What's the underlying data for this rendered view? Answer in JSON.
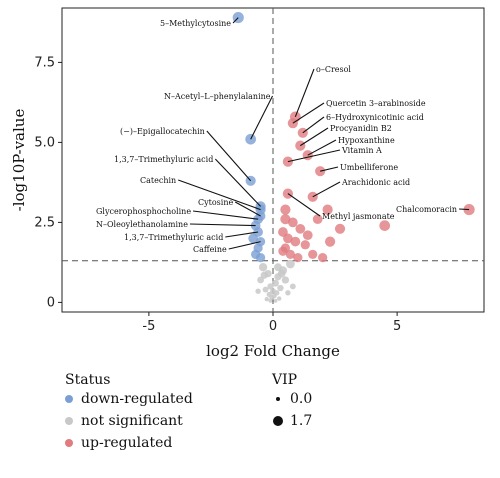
{
  "chart_data": {
    "type": "scatter",
    "title": "",
    "xlabel": "log2 Fold Change",
    "ylabel": "-log10P-value",
    "xlim": [
      -8.5,
      8.5
    ],
    "ylim": [
      -0.3,
      9.2
    ],
    "xticks": [
      -5,
      0,
      5
    ],
    "yticks": [
      0,
      2.5,
      5.0,
      7.5
    ],
    "xtick_labels": [
      "-5",
      "0",
      "5"
    ],
    "ytick_labels": [
      "0",
      "2.5",
      "5.0",
      "7.5"
    ],
    "thresholds": {
      "x": 0,
      "y": 1.3
    },
    "grid": false,
    "colors": {
      "down": "#7b9fd4",
      "ns": "#c8c8c8",
      "up": "#e07b7f"
    },
    "labeled_points": [
      {
        "label": "5–Methylcytosine",
        "x": -1.4,
        "y": 8.9,
        "status": "down",
        "vip": 1.7
      },
      {
        "label": "N–Acetyl–L–phenylalanine",
        "x": -0.9,
        "y": 5.1,
        "status": "down",
        "vip": 1.6
      },
      {
        "label": "(−)–Epigallocatechin",
        "x": -0.9,
        "y": 3.8,
        "status": "down",
        "vip": 1.5
      },
      {
        "label": "1,3,7–Trimethyluric acid",
        "x": -0.5,
        "y": 3.0,
        "status": "down",
        "vip": 1.5
      },
      {
        "label": "Catechin",
        "x": -0.5,
        "y": 2.9,
        "status": "down",
        "vip": 1.5
      },
      {
        "label": "Cytosine",
        "x": -0.5,
        "y": 2.7,
        "status": "down",
        "vip": 1.4
      },
      {
        "label": "Glycerophosphocholine",
        "x": -0.6,
        "y": 2.6,
        "status": "down",
        "vip": 1.4
      },
      {
        "label": "N–Oleoylethanolamine",
        "x": -0.7,
        "y": 2.4,
        "status": "down",
        "vip": 1.4
      },
      {
        "label": "1,3,7–Trimethyluric acid",
        "x": -0.6,
        "y": 2.2,
        "status": "down",
        "vip": 1.4
      },
      {
        "label": "Caffeine",
        "x": -0.5,
        "y": 1.9,
        "status": "down",
        "vip": 1.3
      },
      {
        "label": "o–Cresol",
        "x": 0.9,
        "y": 5.8,
        "status": "up",
        "vip": 1.6
      },
      {
        "label": "Quercetin 3–arabinoside",
        "x": 0.8,
        "y": 5.6,
        "status": "up",
        "vip": 1.5
      },
      {
        "label": "6–Hydroxynicotinic acid",
        "x": 1.2,
        "y": 5.3,
        "status": "up",
        "vip": 1.5
      },
      {
        "label": "Procyanidin B2",
        "x": 1.1,
        "y": 4.9,
        "status": "up",
        "vip": 1.5
      },
      {
        "label": "Hypoxanthine",
        "x": 1.4,
        "y": 4.6,
        "status": "up",
        "vip": 1.5
      },
      {
        "label": "Vitamin A",
        "x": 0.6,
        "y": 4.4,
        "status": "up",
        "vip": 1.5
      },
      {
        "label": "Umbelliferone",
        "x": 1.9,
        "y": 4.1,
        "status": "up",
        "vip": 1.5
      },
      {
        "label": "Arachidonic acid",
        "x": 1.6,
        "y": 3.3,
        "status": "up",
        "vip": 1.5
      },
      {
        "label": "Methyl jasmonate",
        "x": 0.6,
        "y": 3.4,
        "status": "up",
        "vip": 1.5
      },
      {
        "label": "Chalcomoracin",
        "x": 7.9,
        "y": 2.9,
        "status": "up",
        "vip": 1.7
      }
    ],
    "other_points": [
      {
        "x": 2.2,
        "y": 2.9,
        "status": "up",
        "vip": 1.5
      },
      {
        "x": 2.7,
        "y": 2.3,
        "status": "up",
        "vip": 1.5
      },
      {
        "x": 4.5,
        "y": 2.4,
        "status": "up",
        "vip": 1.6
      },
      {
        "x": 1.8,
        "y": 2.6,
        "status": "up",
        "vip": 1.4
      },
      {
        "x": 2.3,
        "y": 1.9,
        "status": "up",
        "vip": 1.5
      },
      {
        "x": 0.5,
        "y": 2.9,
        "status": "up",
        "vip": 1.5
      },
      {
        "x": 0.5,
        "y": 2.6,
        "status": "up",
        "vip": 1.5
      },
      {
        "x": 0.8,
        "y": 2.5,
        "status": "up",
        "vip": 1.4
      },
      {
        "x": 1.1,
        "y": 2.3,
        "status": "up",
        "vip": 1.4
      },
      {
        "x": 0.4,
        "y": 2.2,
        "status": "up",
        "vip": 1.4
      },
      {
        "x": 0.6,
        "y": 2.0,
        "status": "up",
        "vip": 1.4
      },
      {
        "x": 0.9,
        "y": 1.9,
        "status": "up",
        "vip": 1.4
      },
      {
        "x": 1.3,
        "y": 1.8,
        "status": "up",
        "vip": 1.3
      },
      {
        "x": 0.5,
        "y": 1.7,
        "status": "up",
        "vip": 1.3
      },
      {
        "x": 1.6,
        "y": 1.5,
        "status": "up",
        "vip": 1.3
      },
      {
        "x": 0.7,
        "y": 1.5,
        "status": "up",
        "vip": 1.3
      },
      {
        "x": 2.0,
        "y": 1.4,
        "status": "up",
        "vip": 1.3
      },
      {
        "x": 1.0,
        "y": 1.4,
        "status": "up",
        "vip": 1.3
      },
      {
        "x": 0.4,
        "y": 1.6,
        "status": "up",
        "vip": 1.3
      },
      {
        "x": 1.4,
        "y": 2.1,
        "status": "up",
        "vip": 1.4
      },
      {
        "x": -0.6,
        "y": 1.7,
        "status": "down",
        "vip": 1.3
      },
      {
        "x": -0.7,
        "y": 1.5,
        "status": "down",
        "vip": 1.3
      },
      {
        "x": -0.5,
        "y": 1.4,
        "status": "down",
        "vip": 1.3
      },
      {
        "x": -0.8,
        "y": 2.0,
        "status": "down",
        "vip": 1.4
      },
      {
        "x": 0.7,
        "y": 1.2,
        "status": "ns",
        "vip": 1.2
      },
      {
        "x": 0.4,
        "y": 1.0,
        "status": "ns",
        "vip": 1.1
      },
      {
        "x": -0.4,
        "y": 1.1,
        "status": "ns",
        "vip": 1.1
      },
      {
        "x": -0.2,
        "y": 0.9,
        "status": "ns",
        "vip": 0.9
      },
      {
        "x": 0.2,
        "y": 0.8,
        "status": "ns",
        "vip": 0.9
      },
      {
        "x": 0.5,
        "y": 0.7,
        "status": "ns",
        "vip": 0.9
      },
      {
        "x": -0.5,
        "y": 0.7,
        "status": "ns",
        "vip": 0.8
      },
      {
        "x": 0.1,
        "y": 0.6,
        "status": "ns",
        "vip": 0.8
      },
      {
        "x": -0.1,
        "y": 0.5,
        "status": "ns",
        "vip": 0.7
      },
      {
        "x": 0.3,
        "y": 0.45,
        "status": "ns",
        "vip": 0.7
      },
      {
        "x": -0.3,
        "y": 0.4,
        "status": "ns",
        "vip": 0.6
      },
      {
        "x": 0.0,
        "y": 0.35,
        "status": "ns",
        "vip": 0.6
      },
      {
        "x": 0.15,
        "y": 0.3,
        "status": "ns",
        "vip": 0.5
      },
      {
        "x": -0.15,
        "y": 0.25,
        "status": "ns",
        "vip": 0.5
      },
      {
        "x": 0.05,
        "y": 0.2,
        "status": "ns",
        "vip": 0.4
      },
      {
        "x": -0.05,
        "y": 0.15,
        "status": "ns",
        "vip": 0.4
      },
      {
        "x": 0.25,
        "y": 0.12,
        "status": "ns",
        "vip": 0.3
      },
      {
        "x": -0.25,
        "y": 0.1,
        "status": "ns",
        "vip": 0.3
      },
      {
        "x": 0.1,
        "y": 0.05,
        "status": "ns",
        "vip": 0.2
      },
      {
        "x": -0.1,
        "y": 0.05,
        "status": "ns",
        "vip": 0.2
      },
      {
        "x": 0.6,
        "y": 0.3,
        "status": "ns",
        "vip": 0.5
      },
      {
        "x": -0.6,
        "y": 0.35,
        "status": "ns",
        "vip": 0.5
      },
      {
        "x": 0.35,
        "y": 0.9,
        "status": "ns",
        "vip": 1.0
      },
      {
        "x": -0.35,
        "y": 0.85,
        "status": "ns",
        "vip": 0.9
      },
      {
        "x": 0.8,
        "y": 0.5,
        "status": "ns",
        "vip": 0.6
      },
      {
        "x": 0.2,
        "y": 1.1,
        "status": "ns",
        "vip": 1.0
      }
    ],
    "legend": {
      "status_title": "Status",
      "status_items": [
        {
          "key": "down",
          "label": "down-regulated"
        },
        {
          "key": "ns",
          "label": "not significant"
        },
        {
          "key": "up",
          "label": "up-regulated"
        }
      ],
      "vip_title": "VIP",
      "vip_items": [
        {
          "label": "0.0",
          "vip": 0.0
        },
        {
          "label": "1.7",
          "vip": 1.7
        }
      ]
    }
  }
}
